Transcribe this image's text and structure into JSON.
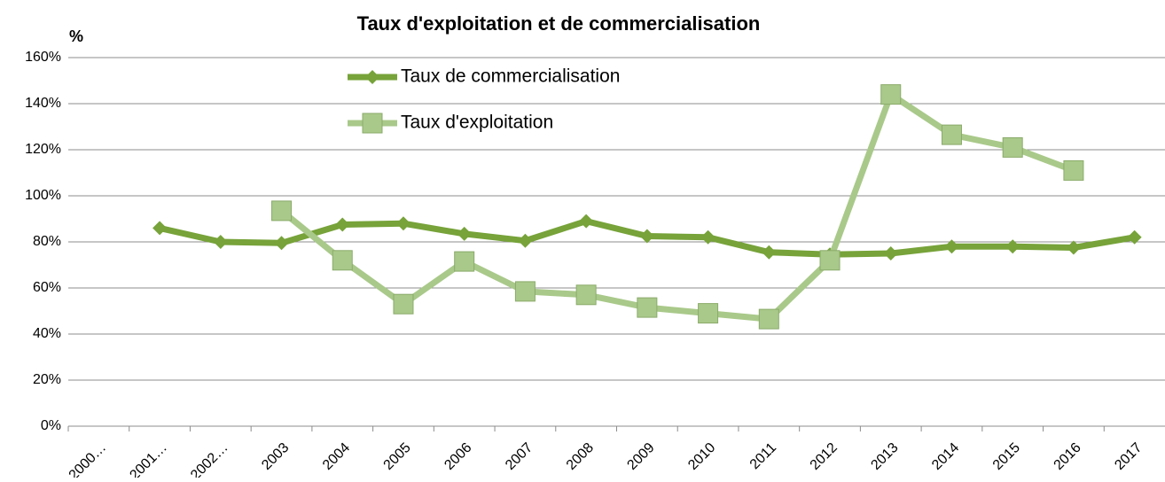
{
  "chart_data": {
    "type": "line",
    "title": "Taux d'exploitation et de commercialisation",
    "y_label": "%",
    "categories": [
      "2000…",
      "2001…",
      "2002…",
      "2003",
      "2004",
      "2005",
      "2006",
      "2007",
      "2008",
      "2009",
      "2010",
      "2011",
      "2012",
      "2013",
      "2014",
      "2015",
      "2016",
      "2017"
    ],
    "series": [
      {
        "name": "Taux de commercialisation",
        "color": "#77a33a",
        "marker": "diamond",
        "values": [
          null,
          86,
          80,
          79.5,
          87.5,
          88,
          83.5,
          80.5,
          89,
          82.5,
          82,
          75.5,
          74.5,
          75,
          78,
          78,
          77.5,
          82
        ]
      },
      {
        "name": "Taux d'exploitation",
        "color": "#a9c98a",
        "marker": "square",
        "values": [
          null,
          null,
          null,
          93.5,
          72,
          53,
          71.5,
          58.5,
          57,
          51.5,
          49,
          46.5,
          72,
          144,
          126.5,
          121,
          111,
          null
        ]
      }
    ],
    "ylim": [
      0,
      160
    ],
    "yticks": [
      {
        "value": 0,
        "label": "0%"
      },
      {
        "value": 20,
        "label": "20%"
      },
      {
        "value": 40,
        "label": "40%"
      },
      {
        "value": 60,
        "label": "60%"
      },
      {
        "value": 80,
        "label": "80%"
      },
      {
        "value": 100,
        "label": "100%"
      },
      {
        "value": 120,
        "label": "120%"
      },
      {
        "value": 140,
        "label": "140%"
      },
      {
        "value": 160,
        "label": "160%"
      }
    ],
    "grid": true,
    "legend": "top"
  }
}
